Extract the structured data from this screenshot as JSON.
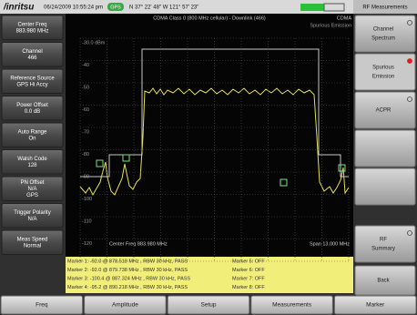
{
  "header": {
    "brand": "/inritsu",
    "datetime": "06/24/2009 10:55:24 pm",
    "gps": "GPS",
    "location": "N 37° 22' 48\" W 121° 57' 23\"",
    "menu_title": "RF Measurements"
  },
  "left_menu": [
    {
      "lines": [
        "Center Freq",
        "883.980 MHz"
      ]
    },
    {
      "lines": [
        "Channel",
        "466"
      ]
    },
    {
      "lines": [
        "Reference Source",
        "GPS Hi Accy"
      ]
    },
    {
      "lines": [
        "Power Offset",
        "0.0 dB"
      ]
    },
    {
      "lines": [
        "Auto Range",
        "On"
      ]
    },
    {
      "lines": [
        "Walsh Code",
        "128"
      ]
    },
    {
      "lines": [
        "PN Offset",
        "N/A",
        "GPS"
      ]
    },
    {
      "lines": [
        "Trigger Polarity",
        "N/A"
      ]
    },
    {
      "lines": [
        "Meas Speed",
        "Normal"
      ]
    }
  ],
  "display": {
    "mode": "CDMA Class 0 (800 MHz cellular) - Downlink (466)",
    "standard": "CDMA",
    "measurement": "Spurious Emission",
    "y_labels": [
      "-30.0 dBm",
      "-40",
      "-50",
      "-60",
      "-70",
      "-80",
      "-90",
      "-100",
      "-110",
      "-120"
    ],
    "center": "Center Freq 883.980 MHz",
    "span": "Span 13.000 MHz",
    "markers_left": [
      "Marker 1: -92.0 @ 878.518 MHz , RBW 30 kHz, PASS",
      "Marker 2: -92.0 @ 879.738 MHz , RBW 30 kHz, PASS",
      "Marker 3: -100.4 @ 887.324 MHz , RBW 30 kHz, PASS",
      "Marker 4: -95.2 @ 890.218 MHz , RBW 30 kHz, PASS"
    ],
    "markers_right": [
      "Marker 5: OFF",
      "Marker 6: OFF",
      "Marker 7: OFF",
      "Marker 8: OFF"
    ]
  },
  "right_menu": [
    {
      "lines": [
        "Channel",
        "Spectrum"
      ],
      "indicator": "open"
    },
    {
      "lines": [
        "Spurious",
        "Emission"
      ],
      "indicator": "active"
    },
    {
      "lines": [
        "ACPR"
      ],
      "indicator": "open"
    },
    {
      "lines": [
        "RF",
        "Summary"
      ],
      "indicator": "open"
    },
    {
      "lines": [
        "Back"
      ]
    }
  ],
  "tabs": [
    "Freq",
    "Amplitude",
    "Setup",
    "Measurements",
    "Marker"
  ]
}
